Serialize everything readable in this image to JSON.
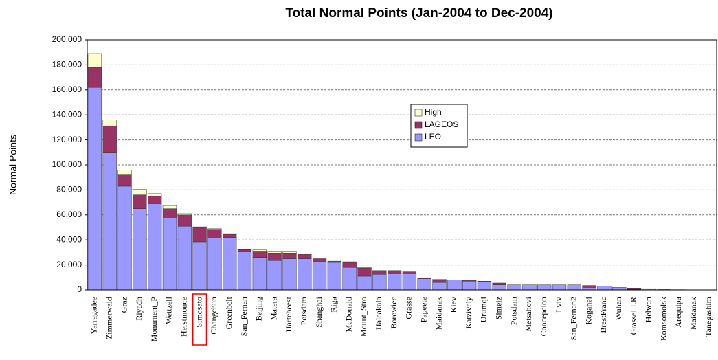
{
  "chart_data": {
    "type": "bar",
    "stacked": true,
    "title": "Total Normal Points (Jan-2004 to Dec-2004)",
    "y_label": "Normal Points",
    "categories": [
      "Yarragadee",
      "Zimmerwald",
      "Graz",
      "Riyadh",
      "Monument_P",
      "Wettzell",
      "Herstmonce",
      "Simosato",
      "Changchun",
      "Greenbelt",
      "San_Fernan",
      "Beijing",
      "Matera",
      "Hartebeest",
      "Potsdam",
      "Shanghai",
      "Riga",
      "McDonald",
      "Mount_Stro",
      "Haleakala",
      "Borowiec",
      "Grasse",
      "Papeete",
      "Maidanak",
      "Kiev",
      "Katzively",
      "Urumqi",
      "Simeiz",
      "Potsdam",
      "Metsahovi",
      "Concepcion",
      "Lviv",
      "San_Fernan2",
      "Koganei",
      "BrestFranc",
      "Wuhan",
      "GrasseLLR",
      "Helwan",
      "Komsomolsk",
      "Arequipa",
      "Maidanak",
      "Tanegashim"
    ],
    "series": [
      {
        "name": "LEO",
        "color": "#9999ff",
        "values": [
          162000,
          110000,
          83000,
          65000,
          69000,
          57500,
          51000,
          38500,
          41500,
          42000,
          30500,
          26000,
          23500,
          25000,
          25000,
          22500,
          22000,
          18000,
          11000,
          12500,
          13000,
          13000,
          9000,
          6000,
          8000,
          7000,
          6500,
          4000,
          4000,
          4000,
          4000,
          4000,
          4000,
          2000,
          3000,
          2000,
          500,
          1000,
          300,
          200,
          100,
          100
        ]
      },
      {
        "name": "LAGEOS",
        "color": "#993366",
        "values": [
          16000,
          21000,
          9500,
          11000,
          6000,
          7500,
          9000,
          11500,
          6500,
          2500,
          1500,
          4500,
          6000,
          4500,
          3500,
          2500,
          1000,
          4000,
          6500,
          3000,
          2500,
          1500,
          500,
          2000,
          0,
          500,
          500,
          1500,
          0,
          0,
          0,
          0,
          0,
          1500,
          0,
          0,
          1000,
          0,
          0,
          0,
          0,
          0
        ]
      },
      {
        "name": "High",
        "color": "#ffffcc",
        "values": [
          11000,
          5000,
          3500,
          4500,
          2000,
          2500,
          1000,
          500,
          1000,
          500,
          300,
          1500,
          1000,
          1000,
          500,
          0,
          0,
          500,
          500,
          0,
          0,
          0,
          0,
          500,
          0,
          0,
          0,
          0,
          0,
          0,
          0,
          0,
          0,
          0,
          0,
          0,
          0,
          0,
          0,
          0,
          0,
          0
        ]
      }
    ],
    "ylim": [
      0,
      200000
    ],
    "yticks": [
      0,
      {
        "value": 20000,
        "label": "20,000"
      },
      {
        "value": 40000,
        "label": "40,000"
      },
      {
        "value": 60000,
        "label": "60,000"
      },
      {
        "value": 80000,
        "label": "80,000"
      },
      {
        "value": 100000,
        "label": "100,000"
      },
      {
        "value": 120000,
        "label": "120,000"
      },
      {
        "value": 140000,
        "label": "140,000"
      },
      {
        "value": 160000,
        "label": "160,000"
      },
      {
        "value": 180000,
        "label": "180,000"
      },
      {
        "value": 200000,
        "label": "200,000"
      }
    ],
    "grid": true,
    "legend": "upper-center"
  }
}
